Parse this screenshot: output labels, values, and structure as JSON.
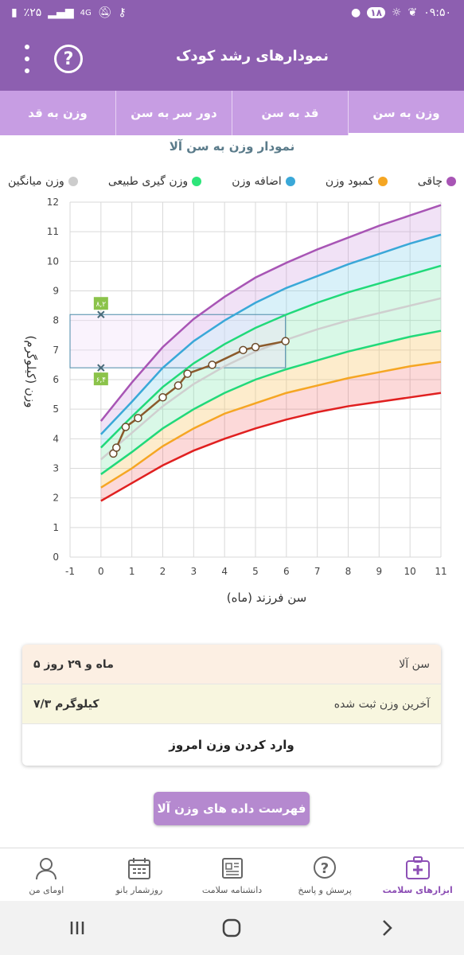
{
  "status": {
    "battery": "٪۲۵",
    "network": "4G",
    "time": "۰۹:۵۰",
    "notif_count": "۱۸"
  },
  "appbar": {
    "title": "نمودارهای رشد کودک"
  },
  "tabs": [
    {
      "label": "وزن به سن",
      "active": true
    },
    {
      "label": "قد به سن",
      "active": false
    },
    {
      "label": "دور سر به سن",
      "active": false
    },
    {
      "label": "وزن به قد",
      "active": false
    }
  ],
  "chart_title": "نمودار وزن به سن آلا",
  "legend": [
    {
      "label": "چاقی",
      "color": "#a855b5"
    },
    {
      "label": "کمبود وزن",
      "color": "#f5a623"
    },
    {
      "label": "اضافه وزن",
      "color": "#3aa8d8"
    },
    {
      "label": "وزن گیری طبیعی",
      "color": "#2ee57a"
    },
    {
      "label": "وزن میانگین",
      "color": "#cccccc"
    }
  ],
  "chart_data": {
    "type": "line",
    "title": "نمودار وزن به سن آلا",
    "xlabel": "سن فرزند (ماه)",
    "ylabel": "وزن (کیلوگرم)",
    "xlim": [
      -1,
      11
    ],
    "ylim": [
      0,
      12
    ],
    "x_ticks": [
      -1,
      0,
      1,
      2,
      3,
      4,
      5,
      6,
      7,
      8,
      9,
      10,
      11
    ],
    "y_ticks": [
      0,
      1,
      2,
      3,
      4,
      5,
      6,
      7,
      8,
      9,
      10,
      11,
      12
    ],
    "grid": true,
    "legend_position": "top",
    "reference_curves": [
      {
        "name": "red",
        "color": "#e02020",
        "x": [
          0,
          1,
          2,
          3,
          4,
          5,
          6,
          7,
          8,
          9,
          10,
          11
        ],
        "values": [
          1.9,
          2.5,
          3.1,
          3.6,
          4.0,
          4.35,
          4.65,
          4.9,
          5.1,
          5.25,
          5.4,
          5.55
        ]
      },
      {
        "name": "orange",
        "color": "#f5a623",
        "x": [
          0,
          1,
          2,
          3,
          4,
          5,
          6,
          7,
          8,
          9,
          10,
          11
        ],
        "values": [
          2.35,
          3.0,
          3.75,
          4.35,
          4.85,
          5.2,
          5.55,
          5.8,
          6.05,
          6.25,
          6.45,
          6.6
        ]
      },
      {
        "name": "green-low",
        "color": "#21d97a",
        "x": [
          0,
          1,
          2,
          3,
          4,
          5,
          6,
          7,
          8,
          9,
          10,
          11
        ],
        "values": [
          2.8,
          3.55,
          4.35,
          5.0,
          5.55,
          6.0,
          6.35,
          6.65,
          6.95,
          7.2,
          7.45,
          7.65
        ]
      },
      {
        "name": "grey",
        "color": "#cfcfcf",
        "x": [
          0,
          1,
          2,
          3,
          4,
          5,
          6,
          7,
          8,
          9,
          10,
          11
        ],
        "values": [
          3.3,
          4.2,
          5.1,
          5.85,
          6.45,
          6.95,
          7.35,
          7.7,
          8.0,
          8.25,
          8.5,
          8.75
        ]
      },
      {
        "name": "green-high",
        "color": "#21d97a",
        "x": [
          0,
          1,
          2,
          3,
          4,
          5,
          6,
          7,
          8,
          9,
          10,
          11
        ],
        "values": [
          3.7,
          4.75,
          5.75,
          6.55,
          7.2,
          7.75,
          8.2,
          8.6,
          8.95,
          9.25,
          9.55,
          9.85
        ]
      },
      {
        "name": "blue",
        "color": "#3aa8d8",
        "x": [
          0,
          1,
          2,
          3,
          4,
          5,
          6,
          7,
          8,
          9,
          10,
          11
        ],
        "values": [
          4.15,
          5.25,
          6.4,
          7.3,
          8.0,
          8.6,
          9.1,
          9.5,
          9.9,
          10.25,
          10.6,
          10.9
        ]
      },
      {
        "name": "purple",
        "color": "#a855b5",
        "x": [
          0,
          1,
          2,
          3,
          4,
          5,
          6,
          7,
          8,
          9,
          10,
          11
        ],
        "values": [
          4.6,
          5.9,
          7.1,
          8.05,
          8.8,
          9.45,
          9.95,
          10.4,
          10.8,
          11.2,
          11.55,
          11.9
        ]
      }
    ],
    "series": [
      {
        "x": [
          0.4,
          0.5,
          0.8,
          1.2,
          2.0,
          2.5,
          2.8,
          3.6,
          4.6,
          5.0,
          5.97
        ],
        "values": [
          3.5,
          3.7,
          4.4,
          4.7,
          5.4,
          5.8,
          6.2,
          6.5,
          7.0,
          7.1,
          7.3
        ],
        "color": "#8b5a2b"
      }
    ],
    "highlight_range": {
      "x": [
        -1,
        5.97
      ],
      "y": [
        6.4,
        8.2
      ],
      "labels": [
        "۸,۲",
        "۶,۴"
      ]
    }
  },
  "card": {
    "age_label": "سن آلا",
    "age_value": "۵ ماه و ۲۹ روز",
    "weight_label": "آخرین وزن ثبت شده",
    "weight_value": "۷/۳ کیلوگرم",
    "enter_weight": "وارد کردن وزن امروز"
  },
  "list_button": "فهرست داده های وزن آلا",
  "bottomnav": [
    {
      "label": "ابزارهای سلامت",
      "icon": "health-kit-icon",
      "active": true
    },
    {
      "label": "پرسش و پاسخ",
      "icon": "question-icon",
      "active": false
    },
    {
      "label": "دانشنامه سلامت",
      "icon": "newspaper-icon",
      "active": false
    },
    {
      "label": "روزشمار بانو",
      "icon": "calendar-icon",
      "active": false
    },
    {
      "label": "اومای من",
      "icon": "user-icon",
      "active": false
    }
  ]
}
